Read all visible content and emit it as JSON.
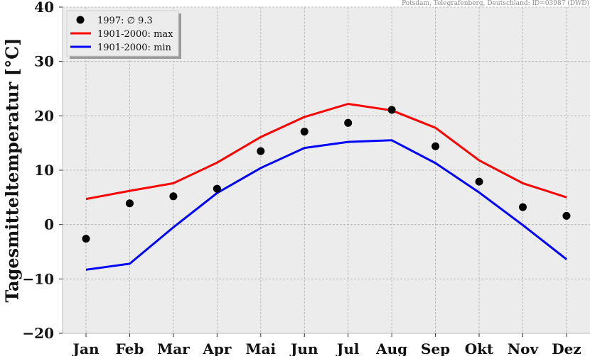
{
  "chart_data": {
    "type": "line",
    "source_note": "Potsdam, Telegrafenberg, Deutschland: ID=03987 (DWD)",
    "ylabel": "Tagesmitteltemperatur [°C]",
    "categories": [
      "Jan",
      "Feb",
      "Mar",
      "Apr",
      "Mai",
      "Jun",
      "Jul",
      "Aug",
      "Sep",
      "Okt",
      "Nov",
      "Dez"
    ],
    "ylim": [
      -20,
      40
    ],
    "yticks": [
      "40",
      "30",
      "20",
      "10",
      "0",
      "−10",
      "−20"
    ],
    "ytick_values": [
      40,
      30,
      20,
      10,
      0,
      -10,
      -20
    ],
    "grid": true,
    "legend_position": "top-left",
    "series": [
      {
        "name": "1997: ∅ 9.3",
        "kind": "scatter",
        "color": "#000000",
        "values": [
          -2.6,
          3.9,
          5.2,
          6.6,
          13.5,
          17.1,
          18.7,
          21.1,
          14.4,
          7.9,
          3.2,
          1.6
        ]
      },
      {
        "name": "1901-2000: max",
        "kind": "line",
        "color": "#ff0000",
        "values": [
          4.7,
          6.2,
          7.6,
          11.4,
          16.1,
          19.8,
          22.2,
          21.0,
          17.8,
          11.8,
          7.6,
          5.0
        ]
      },
      {
        "name": "1901-2000: min",
        "kind": "line",
        "color": "#0000ff",
        "values": [
          -8.3,
          -7.2,
          -0.5,
          5.8,
          10.4,
          14.1,
          15.2,
          15.5,
          11.3,
          5.9,
          -0.1,
          -6.4
        ]
      }
    ],
    "colors": {
      "plot_background": "#ececec",
      "grid": "#b0b0b0"
    }
  }
}
